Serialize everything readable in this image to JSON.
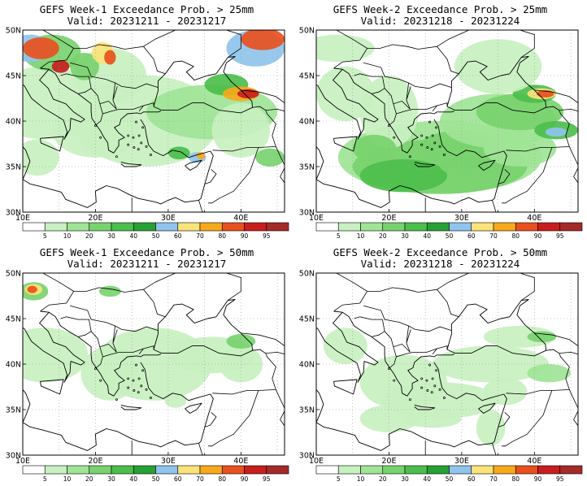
{
  "panels": [
    {
      "title": "GEFS Week-1 Exceedance Prob. > 25mm",
      "valid": "Valid: 20231211 - 20231217",
      "intensity": "high_w1"
    },
    {
      "title": "GEFS Week-2 Exceedance Prob. > 25mm",
      "valid": "Valid: 20231218 - 20231224",
      "intensity": "high_w2"
    },
    {
      "title": "GEFS Week-1 Exceedance Prob. > 50mm",
      "valid": "Valid: 20231211 - 20231217",
      "intensity": "low_w1"
    },
    {
      "title": "GEFS Week-2 Exceedance Prob. > 50mm",
      "valid": "Valid: 20231218 - 20231224",
      "intensity": "low_w2"
    }
  ],
  "map": {
    "lat_labels": [
      "50N",
      "45N",
      "40N",
      "35N",
      "30N"
    ],
    "lon_labels": [
      "10E",
      "20E",
      "30E",
      "40E"
    ]
  },
  "colorbar": {
    "labels": [
      "5",
      "10",
      "20",
      "30",
      "40",
      "50",
      "60",
      "70",
      "80",
      "90",
      "95"
    ],
    "colors": [
      "#ffffff",
      "#c8f0c0",
      "#a0e496",
      "#78d26e",
      "#4cbe4c",
      "#27a035",
      "#8fc4ec",
      "#fae37a",
      "#f6a91a",
      "#e8501e",
      "#c81e1e",
      "#a52a2a"
    ]
  }
}
